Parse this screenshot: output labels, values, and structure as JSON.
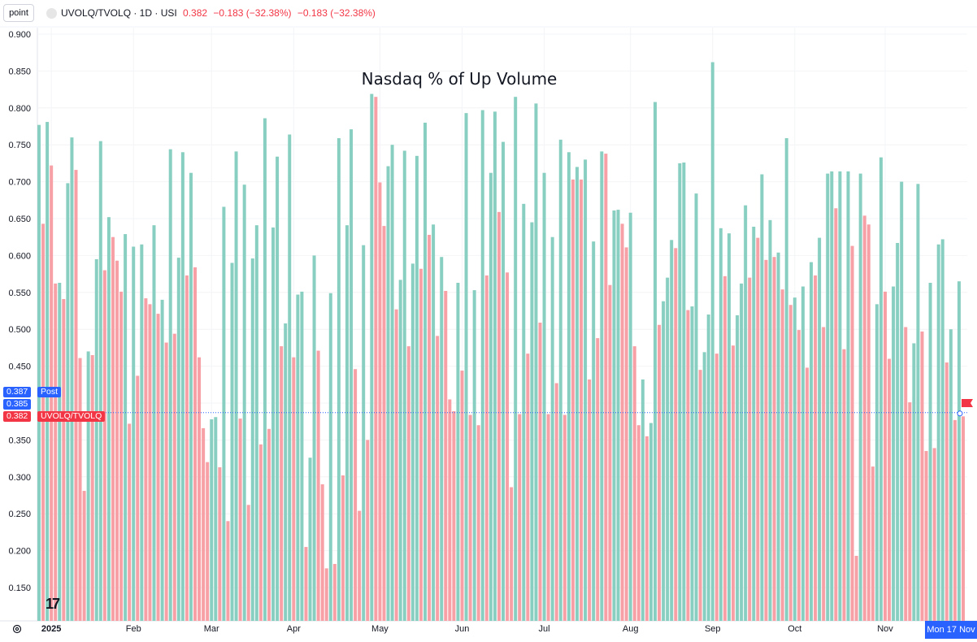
{
  "header": {
    "point_label": "point",
    "symbol": "UVOLQ/TVOLQ · 1D · USI",
    "value": "0.382",
    "change": "−0.183 (−32.38%)",
    "change2": "−0.183 (−32.38%)"
  },
  "tags": {
    "post_value": "0.387",
    "post_label": "Post",
    "alt_value": "0.385",
    "last_value": "0.382",
    "last_label": "UVOLQ/TVOLQ"
  },
  "date_tag": "Mon 17 Nov",
  "logo": "17",
  "colors": {
    "up": "#89cfc1",
    "down": "#f7a0a5",
    "accent": "#2962ff",
    "neg": "#f23645"
  },
  "chart_data": {
    "type": "bar",
    "title": "Nasdaq % of Up Volume",
    "ylim": [
      0.1,
      0.9
    ],
    "yticks": [
      "0.900",
      "0.850",
      "0.800",
      "0.750",
      "0.700",
      "0.650",
      "0.600",
      "0.550",
      "0.500",
      "0.450",
      "0.400",
      "0.350",
      "0.300",
      "0.250",
      "0.200",
      "0.150"
    ],
    "months": [
      {
        "label": "2025",
        "index": 3,
        "bold": true
      },
      {
        "label": "Feb",
        "index": 23
      },
      {
        "label": "Mar",
        "index": 42
      },
      {
        "label": "Apr",
        "index": 62
      },
      {
        "label": "May",
        "index": 83
      },
      {
        "label": "Jun",
        "index": 103
      },
      {
        "label": "Jul",
        "index": 123
      },
      {
        "label": "Aug",
        "index": 144
      },
      {
        "label": "Sep",
        "index": 164
      },
      {
        "label": "Oct",
        "index": 184
      },
      {
        "label": "Nov",
        "index": 206
      }
    ],
    "values": [
      0.777,
      0.643,
      0.781,
      0.722,
      0.562,
      0.563,
      0.541,
      0.698,
      0.76,
      0.716,
      0.461,
      0.281,
      0.47,
      0.465,
      0.595,
      0.755,
      0.58,
      0.652,
      0.625,
      0.593,
      0.551,
      0.629,
      0.372,
      0.612,
      0.437,
      0.615,
      0.542,
      0.534,
      0.641,
      0.521,
      0.54,
      0.482,
      0.744,
      0.494,
      0.597,
      0.74,
      0.573,
      0.712,
      0.584,
      0.462,
      0.366,
      0.32,
      0.378,
      0.381,
      0.313,
      0.666,
      0.24,
      0.59,
      0.741,
      0.379,
      0.696,
      0.262,
      0.596,
      0.641,
      0.344,
      0.786,
      0.365,
      0.638,
      0.734,
      0.477,
      0.508,
      0.764,
      0.462,
      0.547,
      0.551,
      0.205,
      0.326,
      0.6,
      0.471,
      0.29,
      0.176,
      0.549,
      0.182,
      0.759,
      0.302,
      0.641,
      0.771,
      0.446,
      0.254,
      0.614,
      0.35,
      0.819,
      0.815,
      0.699,
      0.64,
      0.721,
      0.75,
      0.527,
      0.567,
      0.742,
      0.477,
      0.589,
      0.735,
      0.582,
      0.78,
      0.628,
      0.642,
      0.491,
      0.598,
      0.552,
      0.405,
      0.389,
      0.563,
      0.444,
      0.793,
      0.384,
      0.553,
      0.37,
      0.797,
      0.573,
      0.712,
      0.795,
      0.659,
      0.754,
      0.577,
      0.286,
      0.815,
      0.385,
      0.67,
      0.467,
      0.645,
      0.806,
      0.509,
      0.712,
      0.385,
      0.625,
      0.427,
      0.757,
      0.384,
      0.74,
      0.703,
      0.72,
      0.703,
      0.73,
      0.432,
      0.619,
      0.488,
      0.741,
      0.738,
      0.56,
      0.661,
      0.662,
      0.643,
      0.611,
      0.658,
      0.477,
      0.37,
      0.432,
      0.355,
      0.373,
      0.808,
      0.506,
      0.538,
      0.57,
      0.621,
      0.61,
      0.725,
      0.726,
      0.526,
      0.531,
      0.684,
      0.445,
      0.469,
      0.52,
      0.862,
      0.467,
      0.637,
      0.572,
      0.63,
      0.478,
      0.519,
      0.562,
      0.668,
      0.57,
      0.639,
      0.624,
      0.71,
      0.594,
      0.648,
      0.598,
      0.604,
      0.554,
      0.759,
      0.533,
      0.543,
      0.499,
      0.558,
      0.448,
      0.591,
      0.573,
      0.624,
      0.503,
      0.711,
      0.714,
      0.664,
      0.714,
      0.473,
      0.714,
      0.613,
      0.193,
      0.711,
      0.654,
      0.642,
      0.314,
      0.534,
      0.733,
      0.551,
      0.46,
      0.558,
      0.617,
      0.7,
      0.503,
      0.401,
      0.481,
      0.697,
      0.497,
      0.335,
      0.563,
      0.339,
      0.615,
      0.622,
      0.455,
      0.5,
      0.377,
      0.565,
      0.382
    ],
    "last_value_line": 0.387
  }
}
